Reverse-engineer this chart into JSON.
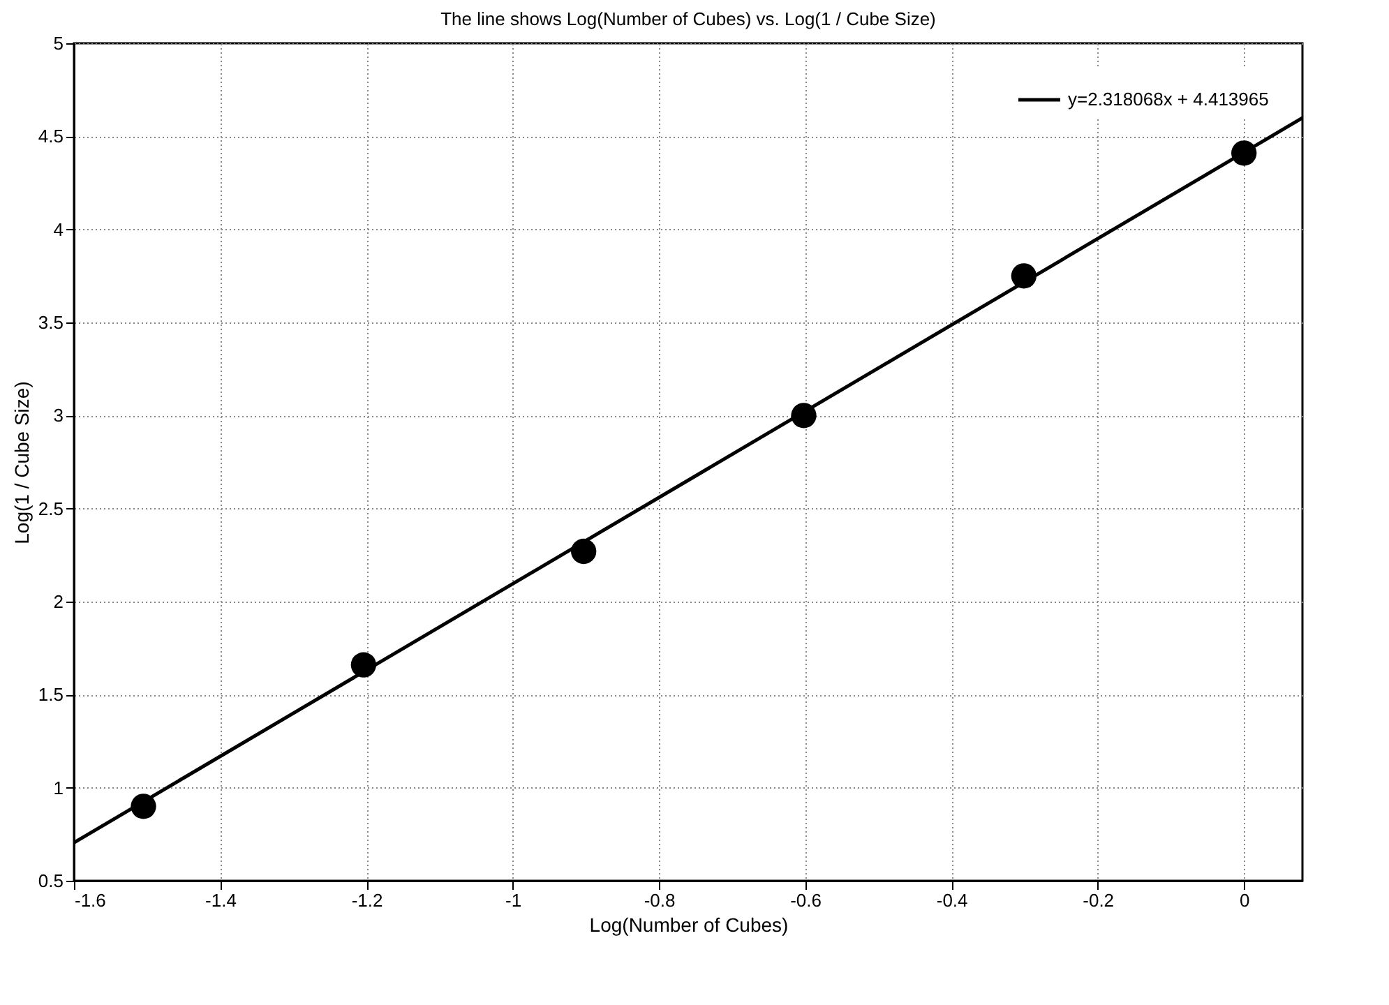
{
  "chart_data": {
    "type": "scatter",
    "title": "The line shows Log(Number of Cubes) vs. Log(1 / Cube Size)",
    "xlabel": "Log(Number of Cubes)",
    "ylabel": "Log(1 / Cube Size)",
    "xlim": [
      -1.6,
      0.08
    ],
    "xticks": [
      -1.6,
      -1.4,
      -1.2,
      -1,
      -0.8,
      -0.6,
      -0.4,
      -0.2,
      0
    ],
    "ylim": [
      0.5,
      5
    ],
    "yticks": [
      0.5,
      1,
      1.5,
      2,
      2.5,
      3,
      3.5,
      4,
      4.5,
      5
    ],
    "grid": true,
    "legend": "top right",
    "line_style": "solid",
    "series": [
      {
        "marker": "circle",
        "color": "#000000",
        "x": [
          -1.505,
          -1.204,
          -0.903,
          -0.602,
          -0.301,
          0
        ],
        "values": [
          0.9,
          1.66,
          2.27,
          3.0,
          3.75,
          4.41
        ]
      },
      {
        "type": "line",
        "name": "y=2.318068x + 4.413965",
        "color": "#000000",
        "x": [
          -1.6,
          0.08
        ],
        "values": [
          0.705,
          4.599
        ]
      }
    ]
  }
}
